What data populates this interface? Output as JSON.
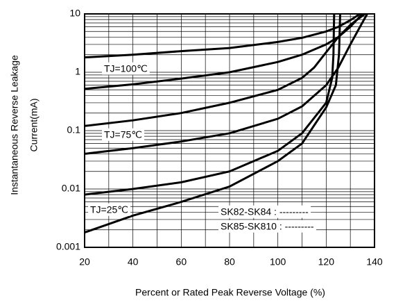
{
  "chart_data": {
    "type": "line",
    "y_label_lines": [
      "Instantaneous Reverse Leakage",
      "Current(mA)"
    ],
    "x_label": "Percent or Rated Peak Reverse Voltage (%)",
    "xlim": [
      20,
      140
    ],
    "xticks": [
      20,
      40,
      60,
      80,
      100,
      120,
      140
    ],
    "ylim": [
      0.001,
      10
    ],
    "yticks": [
      10,
      1,
      0.1,
      0.01,
      0.001
    ],
    "log_y": true,
    "grid": true,
    "annotations": [
      "TJ=100℃",
      "TJ=75℃",
      "TJ=25℃",
      "SK82-SK84   : ---------",
      "SK85-SK810 : ---------"
    ],
    "series": [
      {
        "color": "#000000",
        "x": [
          20,
          40,
          60,
          80,
          100,
          110,
          120,
          125,
          130,
          134
        ],
        "values": [
          1.8,
          2.0,
          2.3,
          2.6,
          3.3,
          3.9,
          5.0,
          6.0,
          7.8,
          10
        ]
      },
      {
        "color": "#000000",
        "x": [
          20,
          40,
          60,
          80,
          100,
          110,
          120,
          125,
          130,
          135
        ],
        "values": [
          0.52,
          0.62,
          0.78,
          1.0,
          1.5,
          2.0,
          3.0,
          4.0,
          6.0,
          10
        ]
      },
      {
        "color": "#000000",
        "x": [
          20,
          40,
          60,
          80,
          100,
          110,
          115,
          120,
          125,
          130,
          136
        ],
        "values": [
          0.12,
          0.15,
          0.2,
          0.3,
          0.5,
          0.8,
          1.2,
          2.2,
          4,
          6.5,
          10
        ]
      },
      {
        "color": "#000000",
        "x": [
          20,
          40,
          60,
          80,
          100,
          110,
          120,
          125,
          130,
          134,
          137
        ],
        "values": [
          0.04,
          0.05,
          0.065,
          0.09,
          0.16,
          0.26,
          0.6,
          1.2,
          3,
          6,
          10
        ]
      },
      {
        "color": "#000000",
        "x": [
          20,
          40,
          60,
          80,
          100,
          110,
          120,
          122.5,
          123,
          123.3
        ],
        "values": [
          0.008,
          0.01,
          0.013,
          0.02,
          0.045,
          0.09,
          0.3,
          0.8,
          2,
          10
        ]
      },
      {
        "color": "#000000",
        "x": [
          20,
          40,
          60,
          80,
          100,
          110,
          120,
          124,
          125.3,
          125.8
        ],
        "values": [
          0.0018,
          0.0035,
          0.006,
          0.011,
          0.03,
          0.06,
          0.25,
          0.6,
          2,
          10
        ]
      }
    ]
  }
}
